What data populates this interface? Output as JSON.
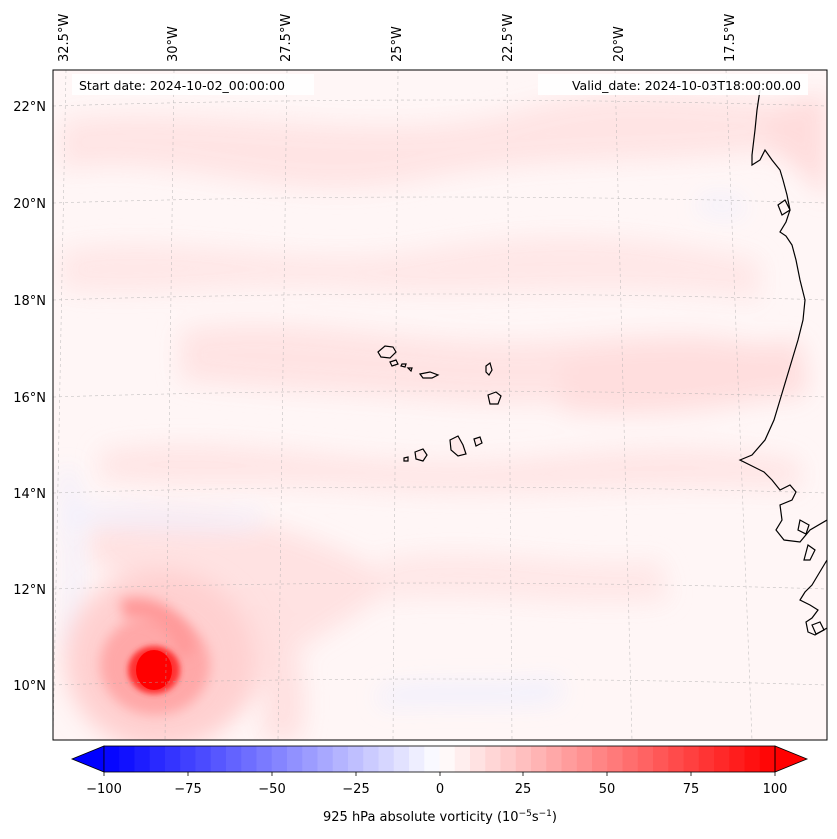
{
  "map": {
    "start_label": "Start date: 2024-10-02_00:00:00",
    "valid_label": "Valid_date: 2024-10-03T18:00:00.00",
    "lon_labels": [
      "32.5°W",
      "30°W",
      "27.5°W",
      "25°W",
      "22.5°W",
      "20°W",
      "17.5°W"
    ],
    "lat_labels": [
      "22°N",
      "20°N",
      "18°N",
      "16°N",
      "14°N",
      "12°N",
      "10°N"
    ],
    "colorbar": {
      "ticks": [
        "−100",
        "−75",
        "−50",
        "−25",
        "0",
        "25",
        "50",
        "75",
        "100"
      ],
      "label_prefix": "925 hPa absolute vorticity (10",
      "label_exp1": "−5",
      "label_mid": "s",
      "label_exp2": "−1",
      "label_suffix": ")",
      "vmin": -100,
      "vmax": 100,
      "levels": 44
    },
    "colors": {
      "negative": "#0000ff",
      "positive": "#ff0000",
      "coast": "#000000"
    }
  }
}
